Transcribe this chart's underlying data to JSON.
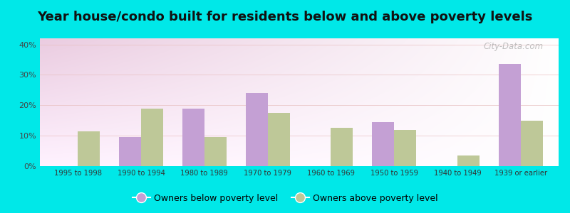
{
  "title": "Year house/condo built for residents below and above poverty levels",
  "categories": [
    "1995 to 1998",
    "1990 to 1994",
    "1980 to 1989",
    "1970 to 1979",
    "1960 to 1969",
    "1950 to 1959",
    "1940 to 1949",
    "1939 or earlier"
  ],
  "below_poverty": [
    0,
    9.5,
    19.0,
    24.0,
    0,
    14.5,
    0,
    33.5
  ],
  "above_poverty": [
    11.5,
    19.0,
    9.5,
    17.5,
    12.5,
    12.0,
    3.5,
    15.0
  ],
  "below_color": "#c4a0d4",
  "above_color": "#bec898",
  "ylim": [
    0,
    42
  ],
  "yticks": [
    0,
    10,
    20,
    30,
    40
  ],
  "ytick_labels": [
    "0%",
    "10%",
    "20%",
    "30%",
    "40%"
  ],
  "legend_below": "Owners below poverty level",
  "legend_above": "Owners above poverty level",
  "outer_bg": "#00e8e8",
  "title_fontsize": 13,
  "bar_width": 0.35,
  "watermark": "City-Data.com"
}
